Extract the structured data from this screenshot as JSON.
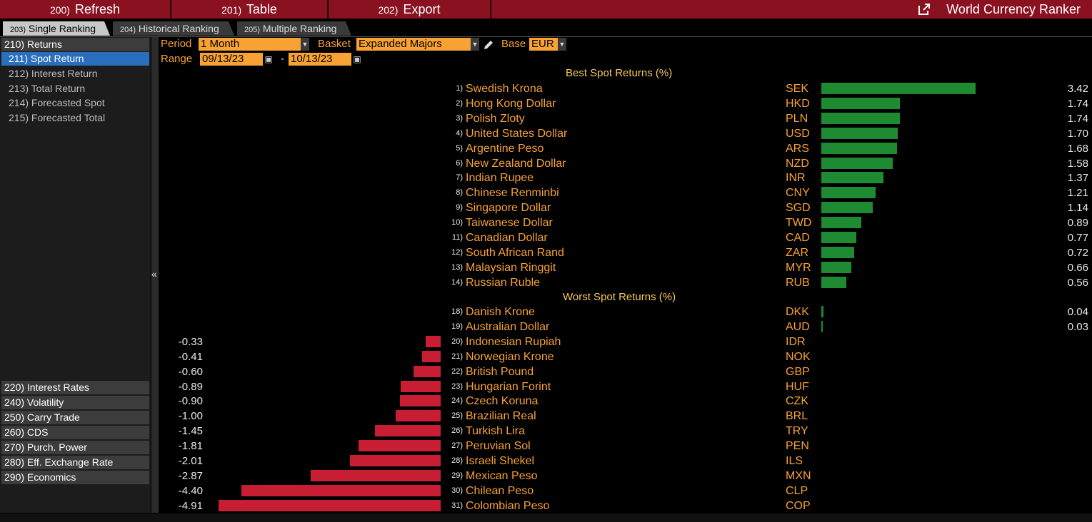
{
  "toolbar": {
    "refresh": {
      "num": "200)",
      "label": "Refresh"
    },
    "table": {
      "num": "201)",
      "label": "Table"
    },
    "export": {
      "num": "202)",
      "label": "Export"
    },
    "title": "World Currency Ranker"
  },
  "tabs": [
    {
      "num": "203)",
      "label": "Single Ranking"
    },
    {
      "num": "204)",
      "label": "Historical Ranking"
    },
    {
      "num": "205)",
      "label": "Multiple Ranking"
    }
  ],
  "sidebar": {
    "returns_head": "210) Returns",
    "items": [
      "211) Spot Return",
      "212) Interest Return",
      "213) Total Return",
      "214) Forecasted Spot",
      "215) Forecasted Total"
    ],
    "sections": [
      "220) Interest Rates",
      "240) Volatility",
      "250) Carry Trade",
      "260) CDS",
      "270) Purch. Power",
      "280) Eff. Exchange Rate",
      "290) Economics"
    ],
    "collapse_glyph": "«"
  },
  "controls": {
    "period_label": "Period",
    "period_value": "1 Month",
    "basket_label": "Basket",
    "basket_value": "Expanded Majors",
    "base_label": "Base",
    "base_value": "EUR",
    "range_label": "Range",
    "range_from": "09/13/23",
    "range_sep": "-",
    "range_to": "10/13/23"
  },
  "best_heading": "Best Spot Returns (%)",
  "worst_heading": "Worst Spot Returns (%)",
  "best": [
    {
      "rank": "1)",
      "name": "Swedish Krona",
      "code": "SEK",
      "value": "3.42"
    },
    {
      "rank": "2)",
      "name": "Hong Kong Dollar",
      "code": "HKD",
      "value": "1.74"
    },
    {
      "rank": "3)",
      "name": "Polish Zloty",
      "code": "PLN",
      "value": "1.74"
    },
    {
      "rank": "4)",
      "name": "United States Dollar",
      "code": "USD",
      "value": "1.70"
    },
    {
      "rank": "5)",
      "name": "Argentine Peso",
      "code": "ARS",
      "value": "1.68"
    },
    {
      "rank": "6)",
      "name": "New Zealand Dollar",
      "code": "NZD",
      "value": "1.58"
    },
    {
      "rank": "7)",
      "name": "Indian Rupee",
      "code": "INR",
      "value": "1.37"
    },
    {
      "rank": "8)",
      "name": "Chinese Renminbi",
      "code": "CNY",
      "value": "1.21"
    },
    {
      "rank": "9)",
      "name": "Singapore Dollar",
      "code": "SGD",
      "value": "1.14"
    },
    {
      "rank": "10)",
      "name": "Taiwanese Dollar",
      "code": "TWD",
      "value": "0.89"
    },
    {
      "rank": "11)",
      "name": "Canadian Dollar",
      "code": "CAD",
      "value": "0.77"
    },
    {
      "rank": "12)",
      "name": "South African Rand",
      "code": "ZAR",
      "value": "0.72"
    },
    {
      "rank": "13)",
      "name": "Malaysian Ringgit",
      "code": "MYR",
      "value": "0.66"
    },
    {
      "rank": "14)",
      "name": "Russian Ruble",
      "code": "RUB",
      "value": "0.56"
    }
  ],
  "worst": [
    {
      "rank": "18)",
      "name": "Danish Krone",
      "code": "DKK",
      "value": "0.04"
    },
    {
      "rank": "19)",
      "name": "Australian Dollar",
      "code": "AUD",
      "value": "0.03"
    },
    {
      "rank": "20)",
      "name": "Indonesian Rupiah",
      "code": "IDR",
      "value": "-0.33"
    },
    {
      "rank": "21)",
      "name": "Norwegian Krone",
      "code": "NOK",
      "value": "-0.41"
    },
    {
      "rank": "22)",
      "name": "British Pound",
      "code": "GBP",
      "value": "-0.60"
    },
    {
      "rank": "23)",
      "name": "Hungarian Forint",
      "code": "HUF",
      "value": "-0.89"
    },
    {
      "rank": "24)",
      "name": "Czech Koruna",
      "code": "CZK",
      "value": "-0.90"
    },
    {
      "rank": "25)",
      "name": "Brazilian Real",
      "code": "BRL",
      "value": "-1.00"
    },
    {
      "rank": "26)",
      "name": "Turkish Lira",
      "code": "TRY",
      "value": "-1.45"
    },
    {
      "rank": "27)",
      "name": "Peruvian Sol",
      "code": "PEN",
      "value": "-1.81"
    },
    {
      "rank": "28)",
      "name": "Israeli Shekel",
      "code": "ILS",
      "value": "-2.01"
    },
    {
      "rank": "29)",
      "name": "Mexican Peso",
      "code": "MXN",
      "value": "-2.87"
    },
    {
      "rank": "30)",
      "name": "Chilean Peso",
      "code": "CLP",
      "value": "-4.40"
    },
    {
      "rank": "31)",
      "name": "Colombian Peso",
      "code": "COP",
      "value": "-4.91"
    }
  ],
  "colors": {
    "positive": "#1e8a32",
    "negative": "#c81e34",
    "accent": "#f7a233",
    "brand": "#8a1120"
  }
}
